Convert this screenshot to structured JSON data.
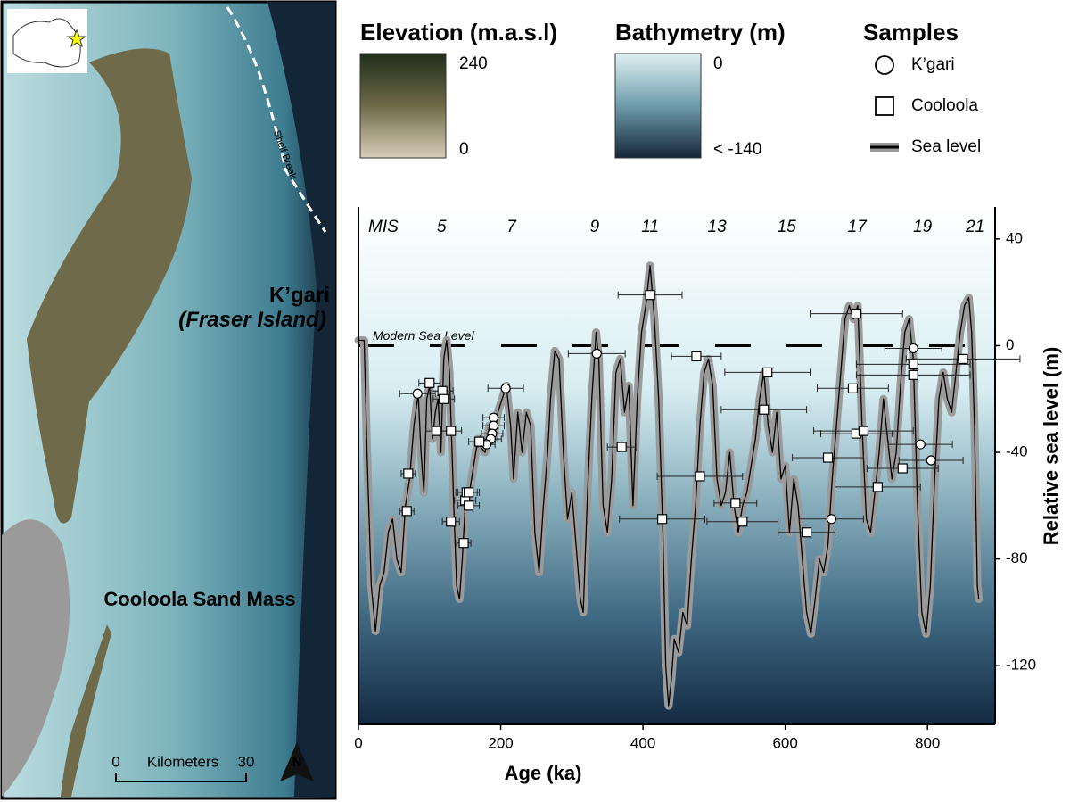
{
  "map": {
    "island_label": "K’gari",
    "island_sublabel": "(Fraser Island)",
    "cooloola_label": "Cooloola Sand Mass",
    "shelf_label": "Shelf Break",
    "scale_title": "Kilometers",
    "scale_min": 0,
    "scale_max": 30,
    "north": "N"
  },
  "legends": {
    "elevation": {
      "title": "Elevation (m.a.s.l)",
      "max": 240,
      "min": 0
    },
    "bathymetry": {
      "title": "Bathymetry (m)",
      "max": 0,
      "min": "< -140"
    },
    "samples": {
      "title": "Samples"
    }
  },
  "chart_data": {
    "type": "line",
    "xlabel": "Age (ka)",
    "ylabel": "Relative sea level (m)",
    "xlim": [
      0,
      895
    ],
    "xticks": [
      0,
      200,
      400,
      600,
      800
    ],
    "ylim": [
      -142,
      52
    ],
    "yticks": [
      -120,
      -80,
      -40,
      0,
      40
    ],
    "yaxis_side": "right",
    "series": [
      {
        "name": "Sea level",
        "color": "#000000",
        "halo": "#9a9a9a",
        "x": [
          0,
          8,
          12,
          18,
          24,
          30,
          36,
          42,
          48,
          54,
          60,
          66,
          72,
          78,
          84,
          88,
          92,
          96,
          100,
          104,
          108,
          112,
          116,
          120,
          124,
          128,
          134,
          138,
          142,
          146,
          150,
          156,
          162,
          168,
          172,
          178,
          184,
          190,
          196,
          202,
          208,
          214,
          218,
          224,
          230,
          236,
          242,
          248,
          254,
          260,
          266,
          270,
          276,
          282,
          288,
          294,
          300,
          306,
          312,
          316,
          322,
          328,
          334,
          338,
          344,
          350,
          356,
          362,
          368,
          374,
          380,
          386,
          392,
          398,
          404,
          410,
          416,
          422,
          428,
          432,
          436,
          440,
          444,
          450,
          456,
          462,
          468,
          474,
          480,
          486,
          492,
          498,
          504,
          510,
          516,
          522,
          528,
          534,
          540,
          546,
          552,
          558,
          564,
          570,
          576,
          582,
          588,
          594,
          600,
          606,
          612,
          618,
          624,
          630,
          636,
          642,
          648,
          654,
          660,
          666,
          672,
          678,
          684,
          690,
          696,
          702,
          708,
          714,
          720,
          726,
          732,
          738,
          744,
          750,
          756,
          762,
          768,
          774,
          780,
          786,
          792,
          798,
          804,
          810,
          816,
          822,
          828,
          834,
          840,
          846,
          852,
          858,
          862,
          866,
          870,
          872
        ],
        "values": [
          2,
          2,
          -40,
          -90,
          -107,
          -90,
          -85,
          -70,
          -65,
          -80,
          -85,
          -60,
          -50,
          -30,
          -18,
          -40,
          -55,
          -20,
          -15,
          -35,
          -25,
          -20,
          -40,
          -5,
          2,
          -10,
          -60,
          -90,
          -95,
          -80,
          -60,
          -55,
          -45,
          -35,
          -38,
          -40,
          -30,
          -35,
          -25,
          -20,
          -15,
          -30,
          -50,
          -25,
          -40,
          -25,
          -30,
          -70,
          -85,
          -60,
          -40,
          -20,
          -2,
          -5,
          -40,
          -65,
          -55,
          -75,
          -95,
          -100,
          -55,
          -20,
          5,
          -5,
          -60,
          -70,
          -50,
          -10,
          -5,
          -25,
          -15,
          -60,
          -20,
          5,
          15,
          30,
          10,
          -20,
          -70,
          -120,
          -135,
          -125,
          -110,
          -115,
          -100,
          -105,
          -80,
          -60,
          -30,
          -10,
          -5,
          -15,
          -50,
          -60,
          -55,
          -40,
          -60,
          -70,
          -60,
          -55,
          -45,
          -35,
          -20,
          -10,
          -30,
          -40,
          -25,
          -50,
          -45,
          -70,
          -50,
          -60,
          -80,
          -100,
          -108,
          -95,
          -80,
          -85,
          -75,
          -50,
          -30,
          -10,
          10,
          15,
          10,
          15,
          -30,
          -65,
          -70,
          -55,
          -40,
          -20,
          -35,
          -50,
          -40,
          -15,
          5,
          10,
          -5,
          -60,
          -100,
          -108,
          -90,
          -50,
          -20,
          -10,
          -20,
          -25,
          -10,
          5,
          15,
          18,
          5,
          -30,
          -90,
          -95
        ]
      }
    ],
    "samples": [
      {
        "name": "K’gari",
        "marker": "circle",
        "x": [
          83,
          190,
          190,
          188,
          186,
          180,
          207,
          335,
          665,
          780,
          790,
          805
        ],
        "values": [
          -18,
          -27,
          -30,
          -33,
          -35,
          -37,
          -16,
          -3,
          -65,
          -1,
          -37,
          -43
        ],
        "xerr": [
          25,
          15,
          15,
          15,
          15,
          12,
          25,
          40,
          45,
          40,
          45,
          45
        ]
      },
      {
        "name": "Cooloola",
        "marker": "square",
        "x": [
          70,
          68,
          100,
          110,
          118,
          120,
          130,
          130,
          148,
          150,
          152,
          155,
          155,
          170,
          370,
          410,
          427,
          475,
          480,
          530,
          540,
          570,
          575,
          630,
          660,
          695,
          700,
          700,
          710,
          730,
          765,
          780,
          780,
          850
        ],
        "values": [
          -48,
          -62,
          -14,
          -32,
          -17,
          -20,
          -32,
          -66,
          -74,
          -58,
          -55,
          -60,
          -55,
          -36,
          -38,
          19,
          -65,
          -4,
          -49,
          -59,
          -66,
          -24,
          -10,
          -70,
          -42,
          -16,
          12,
          -33,
          -32,
          -53,
          -46,
          -7,
          -11,
          -5
        ],
        "xerr": [
          10,
          10,
          15,
          15,
          15,
          15,
          15,
          12,
          10,
          15,
          15,
          15,
          15,
          15,
          20,
          45,
          60,
          35,
          60,
          30,
          50,
          60,
          60,
          40,
          50,
          50,
          65,
          50,
          70,
          60,
          50,
          80,
          80,
          80
        ]
      }
    ],
    "modern_sea_level": {
      "label": "Modern Sea Level",
      "value": 0
    },
    "mis": [
      {
        "label": "MIS",
        "x": 35
      },
      {
        "label": 5,
        "x": 117
      },
      {
        "label": 7,
        "x": 215
      },
      {
        "label": 9,
        "x": 332
      },
      {
        "label": 11,
        "x": 410
      },
      {
        "label": 13,
        "x": 504
      },
      {
        "label": 15,
        "x": 602
      },
      {
        "label": 17,
        "x": 701
      },
      {
        "label": 19,
        "x": 793
      },
      {
        "label": 21,
        "x": 867
      }
    ]
  }
}
